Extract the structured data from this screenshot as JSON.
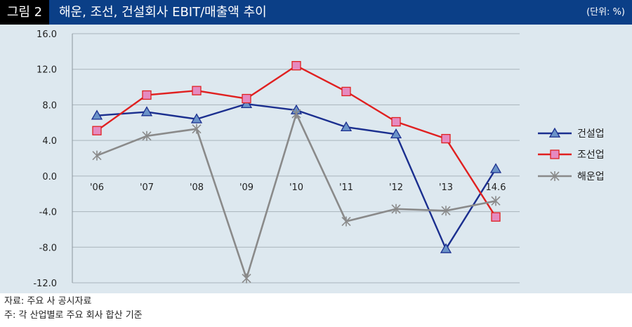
{
  "header": {
    "figure_label": "그림 2",
    "title": "해운, 조선, 건설회사 EBIT/매출액 추이",
    "unit": "(단위: %)"
  },
  "notes": {
    "source": "자료: 주요 사 공시자료",
    "note": "주: 각 산업별로 주요 회사 합산 기준"
  },
  "colors": {
    "header_bg": "#0b3f87",
    "plot_bg": "#dde8ef",
    "construction": "#1b2f8f",
    "shipbuilding": "#e02020",
    "shipping": "#8a8a8a"
  },
  "chart_data": {
    "type": "line",
    "categories": [
      "'06",
      "'07",
      "'08",
      "'09",
      "'10",
      "'11",
      "'12",
      "'13",
      "14.6"
    ],
    "ylim": [
      -12,
      16
    ],
    "yticks": [
      16,
      12,
      8,
      4,
      0,
      -4,
      -8,
      -12
    ],
    "ytick_labels": [
      "16.0",
      "12.0",
      "8.0",
      "4.0",
      "0.0",
      "-4.0",
      "-8.0",
      "-12.0"
    ],
    "grid": true,
    "legend_position": "right",
    "series": [
      {
        "name": "건설업",
        "marker": "triangle",
        "color": "#1b2f8f",
        "marker_fill": "#6b93c8",
        "values": [
          6.8,
          7.2,
          6.4,
          8.1,
          7.4,
          5.5,
          4.7,
          -8.2,
          0.8
        ]
      },
      {
        "name": "조선업",
        "marker": "square",
        "color": "#e02020",
        "marker_fill": "#e58ac0",
        "values": [
          5.1,
          9.1,
          9.6,
          8.7,
          12.4,
          9.5,
          6.1,
          4.2,
          -4.6
        ]
      },
      {
        "name": "해운업",
        "marker": "star",
        "color": "#8a8a8a",
        "marker_fill": "#ffffff",
        "values": [
          2.3,
          4.5,
          5.3,
          -11.5,
          7.0,
          -5.1,
          -3.7,
          -3.9,
          -2.8
        ]
      }
    ]
  }
}
